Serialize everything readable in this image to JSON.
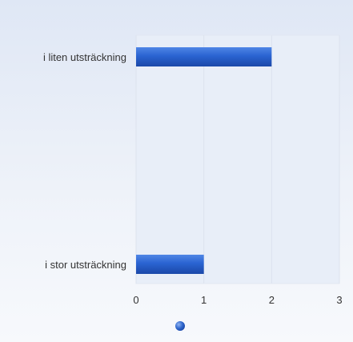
{
  "chart_data": {
    "type": "bar",
    "orientation": "horizontal",
    "categories": [
      "i liten utsträckning",
      "i stor utsträckning"
    ],
    "series": [
      {
        "values": [
          2,
          1
        ]
      }
    ],
    "xlim": [
      0,
      3
    ],
    "x_ticks": [
      "0",
      "1",
      "2",
      "3"
    ],
    "grid": true,
    "legend_placement": "bottom",
    "colors": {
      "bar_light": "#4f86e6",
      "bar_mid": "#2a63d1",
      "bar_dark": "#1b48a8",
      "legend_marker": "#2f66cc"
    }
  }
}
